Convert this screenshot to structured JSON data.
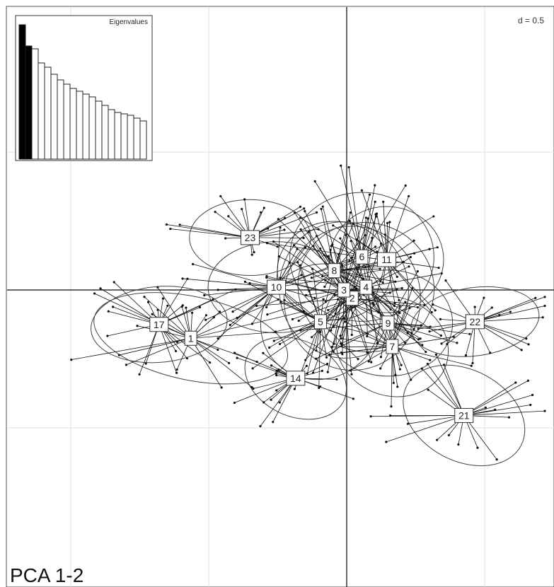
{
  "chart_data": {
    "type": "scatter",
    "subtype": "PCA scatter with group star plots and ellipses (ade4 s.class)",
    "title": "PCA 1-2",
    "scale_label": "d = 0.5",
    "axes": {
      "x_component": 1,
      "y_component": 2,
      "grid": true
    },
    "groups": [
      {
        "label": "1",
        "cx": -1.13,
        "cy": -0.35,
        "rx": 1.3,
        "ry": 0.55,
        "angle": -12
      },
      {
        "label": "2",
        "cx": 0.04,
        "cy": -0.06,
        "rx": 0.9,
        "ry": 0.95,
        "angle": 0
      },
      {
        "label": "3",
        "cx": -0.02,
        "cy": 0.0,
        "rx": 0.85,
        "ry": 0.9,
        "angle": 10
      },
      {
        "label": "4",
        "cx": 0.14,
        "cy": 0.02,
        "rx": 0.9,
        "ry": 0.85,
        "angle": -15
      },
      {
        "label": "5",
        "cx": -0.19,
        "cy": -0.23,
        "rx": 0.8,
        "ry": 0.75,
        "angle": 30
      },
      {
        "label": "6",
        "cx": 0.11,
        "cy": 0.24,
        "rx": 0.95,
        "ry": 0.85,
        "angle": 0
      },
      {
        "label": "7",
        "cx": 0.33,
        "cy": -0.41,
        "rx": 0.75,
        "ry": 0.65,
        "angle": -20
      },
      {
        "label": "8",
        "cx": -0.09,
        "cy": 0.14,
        "rx": 0.75,
        "ry": 0.65,
        "angle": 0
      },
      {
        "label": "9",
        "cx": 0.3,
        "cy": -0.24,
        "rx": 0.85,
        "ry": 0.7,
        "angle": 0
      },
      {
        "label": "10",
        "cx": -0.51,
        "cy": 0.02,
        "rx": 0.9,
        "ry": 0.6,
        "angle": 0
      },
      {
        "label": "11",
        "cx": 0.29,
        "cy": 0.22,
        "rx": 0.75,
        "ry": 0.7,
        "angle": 0
      },
      {
        "label": "14",
        "cx": -0.37,
        "cy": -0.64,
        "rx": 0.7,
        "ry": 0.5,
        "angle": -25
      },
      {
        "label": "17",
        "cx": -1.36,
        "cy": -0.25,
        "rx": 0.9,
        "ry": 0.5,
        "angle": 5
      },
      {
        "label": "21",
        "cx": 0.85,
        "cy": -0.91,
        "rx": 0.85,
        "ry": 0.6,
        "angle": -28
      },
      {
        "label": "22",
        "cx": 0.93,
        "cy": -0.23,
        "rx": 0.85,
        "ry": 0.45,
        "angle": 8
      },
      {
        "label": "23",
        "cx": -0.7,
        "cy": 0.38,
        "rx": 0.8,
        "ry": 0.5,
        "angle": 0
      }
    ],
    "eigenvalues_inset": {
      "title": "Eigenvalues",
      "values": [
        95,
        80,
        78,
        68,
        65,
        60,
        56,
        53,
        50,
        48,
        46,
        44,
        41,
        38,
        35,
        33,
        32,
        31,
        29,
        27
      ],
      "highlighted_first": 2
    }
  }
}
